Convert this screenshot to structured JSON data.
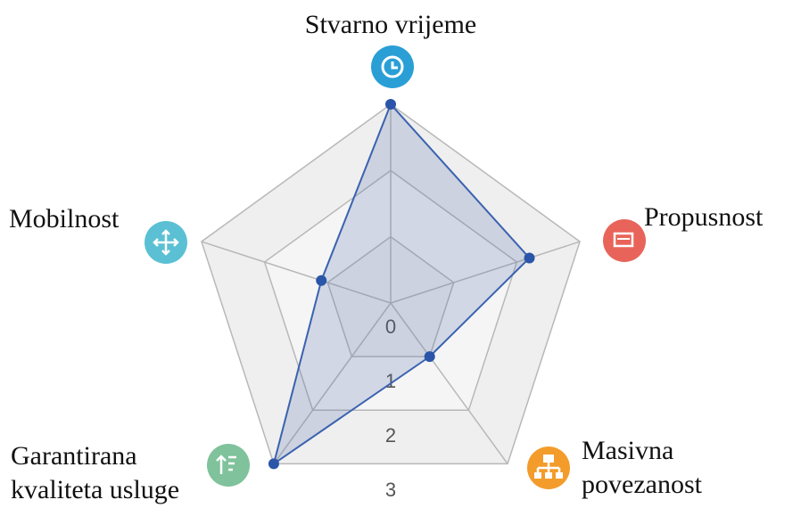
{
  "chart_data": {
    "type": "radar",
    "categories": [
      [
        "Stvarno vrijeme"
      ],
      [
        "Propusnost"
      ],
      [
        "Masivna",
        "povezanost"
      ],
      [
        "Garantirana",
        "kvaliteta usluge"
      ],
      [
        "Mobilnost"
      ]
    ],
    "values": [
      3,
      2.2,
      1,
      3,
      1.1
    ],
    "color": "#3a62b0",
    "ylim": [
      0,
      3
    ],
    "yticks": [
      0,
      1,
      2,
      3
    ],
    "grid": true
  }
}
